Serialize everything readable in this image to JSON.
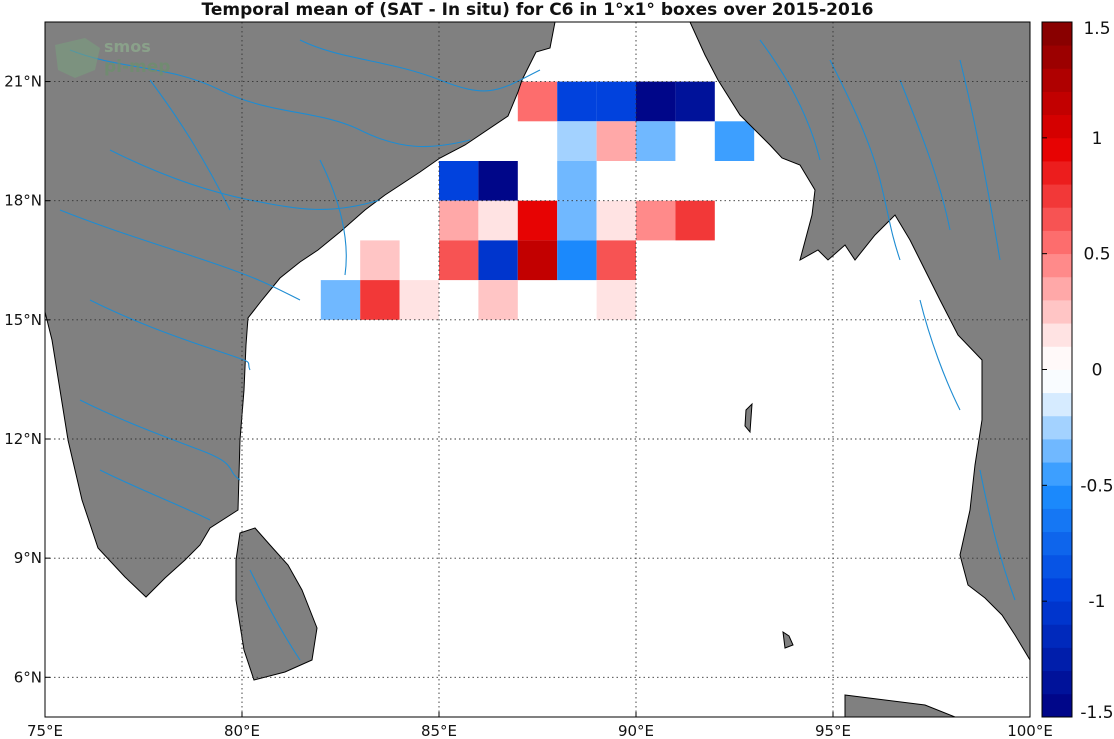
{
  "title": "Temporal mean of (SAT - In situ) for C6 in 1°x1° boxes over 2015-2016",
  "logo": {
    "line1": "smos",
    "line2": "pi-mep"
  },
  "colors": {
    "land": "#808080",
    "ocean": "#ffffff",
    "rivers": "#1e8cd2",
    "coast": "#000000"
  },
  "map": {
    "lon_range": [
      75,
      100
    ],
    "lat_range": [
      5,
      22.5
    ],
    "lon_ticks": [
      "75°E",
      "80°E",
      "85°E",
      "90°E",
      "95°E",
      "100°E"
    ],
    "lat_ticks": [
      "6°N",
      "9°N",
      "12°N",
      "15°N",
      "18°N",
      "21°N"
    ],
    "grid": true
  },
  "colorbar": {
    "range": [
      -1.5,
      1.5
    ],
    "tick_labels": [
      "1.5",
      "1",
      "0.5",
      "0",
      "-0.5",
      "-1",
      "-1.5"
    ]
  },
  "chart_data": {
    "type": "heatmap",
    "units": "1°x1° boxes",
    "cells": [
      {
        "lon": 87.5,
        "lat": 20.5,
        "value": 0.55
      },
      {
        "lon": 88.5,
        "lat": 20.5,
        "value": -0.95
      },
      {
        "lon": 89.5,
        "lat": 20.5,
        "value": -0.95
      },
      {
        "lon": 90.5,
        "lat": 20.5,
        "value": -1.45
      },
      {
        "lon": 91.5,
        "lat": 20.5,
        "value": -1.4
      },
      {
        "lon": 88.5,
        "lat": 19.5,
        "value": -0.25
      },
      {
        "lon": 89.5,
        "lat": 19.5,
        "value": 0.3
      },
      {
        "lon": 90.5,
        "lat": 19.5,
        "value": -0.35
      },
      {
        "lon": 92.5,
        "lat": 19.5,
        "value": -0.5
      },
      {
        "lon": 85.5,
        "lat": 18.5,
        "value": -1.0
      },
      {
        "lon": 86.5,
        "lat": 18.5,
        "value": -1.45
      },
      {
        "lon": 88.5,
        "lat": 18.5,
        "value": -0.4
      },
      {
        "lon": 85.5,
        "lat": 17.5,
        "value": 0.3
      },
      {
        "lon": 86.5,
        "lat": 17.5,
        "value": 0.15
      },
      {
        "lon": 87.5,
        "lat": 17.5,
        "value": 0.95
      },
      {
        "lon": 88.5,
        "lat": 17.5,
        "value": -0.4
      },
      {
        "lon": 89.5,
        "lat": 17.5,
        "value": 0.15
      },
      {
        "lon": 90.5,
        "lat": 17.5,
        "value": 0.45
      },
      {
        "lon": 91.5,
        "lat": 17.5,
        "value": 0.7
      },
      {
        "lon": 83.5,
        "lat": 16.5,
        "value": 0.25
      },
      {
        "lon": 85.5,
        "lat": 16.5,
        "value": 0.65
      },
      {
        "lon": 86.5,
        "lat": 16.5,
        "value": -1.05
      },
      {
        "lon": 87.5,
        "lat": 16.5,
        "value": 1.1
      },
      {
        "lon": 88.5,
        "lat": 16.5,
        "value": -0.55
      },
      {
        "lon": 89.5,
        "lat": 16.5,
        "value": 0.6
      },
      {
        "lon": 82.5,
        "lat": 15.5,
        "value": -0.35
      },
      {
        "lon": 83.5,
        "lat": 15.5,
        "value": 0.8
      },
      {
        "lon": 84.5,
        "lat": 15.5,
        "value": 0.15
      },
      {
        "lon": 86.5,
        "lat": 15.5,
        "value": 0.25
      },
      {
        "lon": 89.5,
        "lat": 15.5,
        "value": 0.15
      }
    ]
  }
}
